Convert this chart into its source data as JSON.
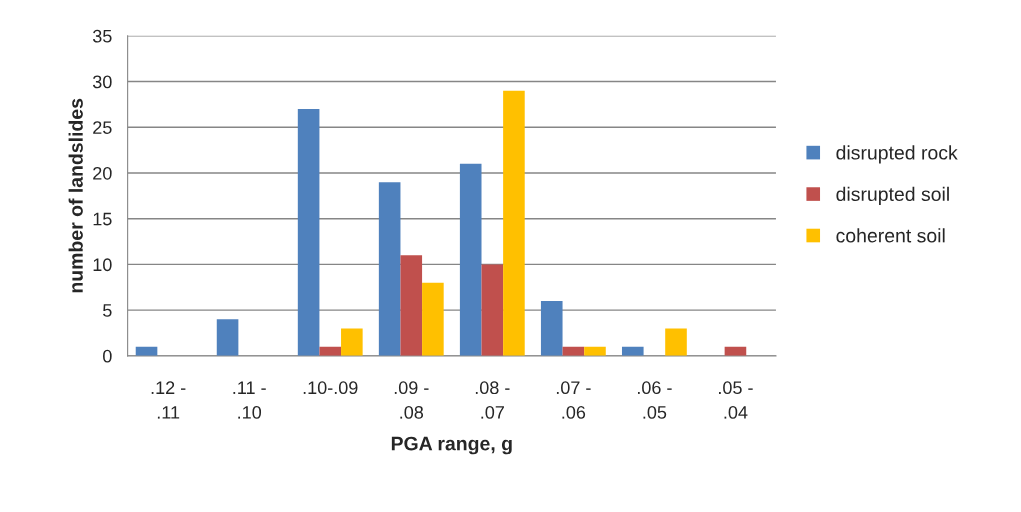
{
  "chart_data": {
    "type": "bar",
    "xlabel": "PGA range, g",
    "ylabel": "number of landslides",
    "categories": [
      ".12 - .11",
      ".11 - .10",
      ".10-.09",
      ".09 - .08",
      ".08 - .07",
      ".07 - .06",
      ".06 - .05",
      ".05 - .04"
    ],
    "series": [
      {
        "name": "disrupted rock",
        "color": "#4f81bd",
        "values": [
          1,
          4,
          27,
          19,
          21,
          6,
          1,
          0
        ]
      },
      {
        "name": "disrupted soil",
        "color": "#c0504d",
        "values": [
          0,
          0,
          1,
          11,
          10,
          1,
          0,
          1
        ]
      },
      {
        "name": "coherent soil",
        "color": "#ffc000",
        "values": [
          0,
          0,
          3,
          8,
          29,
          1,
          3,
          0
        ]
      }
    ],
    "ylim": [
      0,
      35
    ],
    "yticks": [
      0,
      5,
      10,
      15,
      20,
      25,
      30,
      35
    ],
    "grid": "y",
    "legend": "right"
  }
}
